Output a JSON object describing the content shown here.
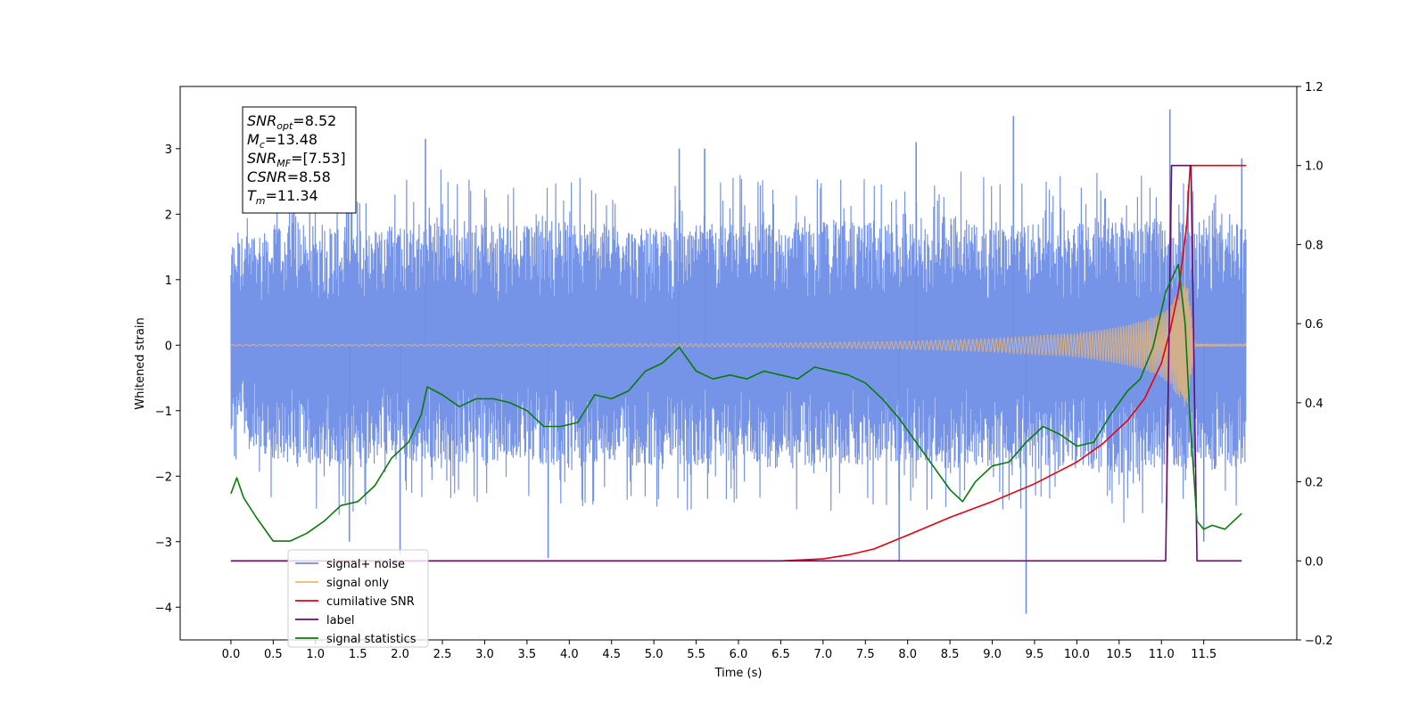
{
  "chart_data": {
    "type": "line",
    "xlabel": "Time (s)",
    "ylabel": "Whitened strain",
    "xlim": [
      -0.6,
      12.6
    ],
    "ylim": [
      -4.5,
      3.95
    ],
    "y2lim": [
      -0.2,
      1.2
    ],
    "x_ticks": [
      0.0,
      0.5,
      1.0,
      1.5,
      2.0,
      2.5,
      3.0,
      3.5,
      4.0,
      4.5,
      5.0,
      5.5,
      6.0,
      6.5,
      7.0,
      7.5,
      8.0,
      8.5,
      9.0,
      9.5,
      10.0,
      10.5,
      11.0,
      11.5
    ],
    "x_tick_labels": [
      "0.0",
      "0.5",
      "1.0",
      "1.5",
      "2.0",
      "2.5",
      "3.0",
      "3.5",
      "4.0",
      "4.5",
      "5.0",
      "5.5",
      "6.0",
      "6.5",
      "7.0",
      "7.5",
      "8.0",
      "8.5",
      "9.0",
      "9.5",
      "10.0",
      "10.5",
      "11.0",
      "11.5"
    ],
    "y_ticks": [
      3,
      2,
      1,
      0,
      -1,
      -2,
      -3,
      -4
    ],
    "y_tick_labels": [
      "3",
      "2",
      "1",
      "0",
      "−1",
      "−2",
      "−3",
      "−4"
    ],
    "y2_ticks": [
      1.2,
      1.0,
      0.8,
      0.6,
      0.4,
      0.2,
      0.0,
      -0.2
    ],
    "y2_tick_labels": [
      "1.2",
      "1.0",
      "0.8",
      "0.6",
      "0.4",
      "0.2",
      "0.0",
      "−0.2"
    ],
    "grid": false,
    "legend_position": "bottom-left",
    "series": [
      {
        "name": "signal+ noise",
        "axis": "left",
        "color": "#6f8ee6",
        "x_range": [
          0.0,
          12.0
        ],
        "envelope_upper": [
          2.0,
          2.3,
          2.4,
          2.2,
          2.3,
          2.5,
          2.3,
          2.4,
          2.4,
          2.3,
          2.2,
          2.3,
          2.4,
          2.3,
          2.4,
          2.4,
          2.3,
          2.5,
          2.4,
          2.3,
          2.4,
          2.5,
          2.4,
          2.4,
          2.3
        ],
        "envelope_lower": [
          -1.6,
          -2.2,
          -2.3,
          -2.4,
          -2.2,
          -2.3,
          -2.3,
          -2.2,
          -2.4,
          -2.3,
          -2.3,
          -2.3,
          -2.2,
          -2.4,
          -2.3,
          -2.3,
          -2.2,
          -2.4,
          -2.3,
          -2.4,
          -2.4,
          -2.5,
          -2.3,
          -2.4,
          -2.3
        ],
        "spikes": [
          [
            1.4,
            -3.0
          ],
          [
            2.0,
            -3.2
          ],
          [
            2.3,
            3.15
          ],
          [
            3.75,
            -3.25
          ],
          [
            5.3,
            3.0
          ],
          [
            5.6,
            3.0
          ],
          [
            7.9,
            -3.3
          ],
          [
            8.1,
            3.1
          ],
          [
            9.25,
            3.5
          ],
          [
            9.4,
            -4.1
          ],
          [
            11.1,
            3.6
          ],
          [
            11.5,
            -3.0
          ],
          [
            11.95,
            2.85
          ]
        ]
      },
      {
        "name": "signal only",
        "axis": "left",
        "color": "#f0b86c",
        "x": [
          0.0,
          1.0,
          2.0,
          3.0,
          4.0,
          5.0,
          6.0,
          6.5,
          7.0,
          7.5,
          8.0,
          8.5,
          9.0,
          9.5,
          10.0,
          10.5,
          10.8,
          11.0,
          11.1,
          11.2,
          11.3,
          11.35,
          11.4,
          12.0
        ],
        "amplitude": [
          0.01,
          0.01,
          0.012,
          0.014,
          0.016,
          0.02,
          0.025,
          0.03,
          0.04,
          0.05,
          0.06,
          0.08,
          0.1,
          0.14,
          0.18,
          0.28,
          0.38,
          0.5,
          0.6,
          0.8,
          1.0,
          0.5,
          0.02,
          0.01
        ]
      },
      {
        "name": "cumilative SNR",
        "axis": "right",
        "color": "#e8000b",
        "x": [
          0.0,
          6.5,
          7.0,
          7.3,
          7.6,
          8.0,
          8.5,
          9.0,
          9.5,
          10.0,
          10.3,
          10.6,
          10.8,
          11.0,
          11.1,
          11.2,
          11.3,
          11.32,
          11.34,
          11.4,
          12.0
        ],
        "values": [
          0.0,
          0.0,
          0.005,
          0.015,
          0.03,
          0.065,
          0.11,
          0.15,
          0.195,
          0.25,
          0.295,
          0.355,
          0.41,
          0.5,
          0.58,
          0.68,
          0.85,
          0.93,
          1.0,
          1.0,
          1.0
        ]
      },
      {
        "name": "label",
        "axis": "right",
        "color": "#6a0a6e",
        "x": [
          0.0,
          11.05,
          11.12,
          11.35,
          11.42,
          11.95
        ],
        "values": [
          0.0,
          0.0,
          1.0,
          1.0,
          0.0,
          0.0
        ]
      },
      {
        "name": "signal statistics",
        "axis": "right",
        "color": "#0a7a0a",
        "x": [
          0.0,
          0.07,
          0.15,
          0.3,
          0.5,
          0.7,
          0.9,
          1.1,
          1.3,
          1.5,
          1.7,
          1.9,
          2.1,
          2.25,
          2.32,
          2.5,
          2.7,
          2.9,
          3.1,
          3.3,
          3.5,
          3.7,
          3.9,
          4.1,
          4.3,
          4.5,
          4.7,
          4.9,
          5.1,
          5.3,
          5.5,
          5.7,
          5.9,
          6.1,
          6.3,
          6.5,
          6.7,
          6.9,
          7.1,
          7.3,
          7.5,
          7.7,
          7.9,
          8.1,
          8.3,
          8.5,
          8.65,
          8.8,
          9.0,
          9.2,
          9.4,
          9.6,
          9.8,
          10.0,
          10.2,
          10.4,
          10.6,
          10.75,
          10.9,
          11.05,
          11.2,
          11.28,
          11.34,
          11.42,
          11.5,
          11.6,
          11.75,
          11.95
        ],
        "values": [
          0.17,
          0.21,
          0.16,
          0.11,
          0.05,
          0.05,
          0.07,
          0.1,
          0.14,
          0.15,
          0.19,
          0.26,
          0.3,
          0.37,
          0.44,
          0.42,
          0.39,
          0.41,
          0.41,
          0.4,
          0.38,
          0.34,
          0.34,
          0.35,
          0.42,
          0.41,
          0.43,
          0.48,
          0.5,
          0.54,
          0.48,
          0.46,
          0.47,
          0.46,
          0.48,
          0.47,
          0.46,
          0.49,
          0.48,
          0.47,
          0.45,
          0.41,
          0.36,
          0.3,
          0.24,
          0.18,
          0.15,
          0.2,
          0.24,
          0.25,
          0.3,
          0.34,
          0.32,
          0.29,
          0.3,
          0.37,
          0.43,
          0.46,
          0.54,
          0.68,
          0.75,
          0.6,
          0.35,
          0.1,
          0.08,
          0.09,
          0.08,
          0.12
        ]
      }
    ],
    "annotation": {
      "lines": [
        {
          "base": "SNR",
          "sub": "opt",
          "rest": "=8.52"
        },
        {
          "base": "M",
          "sub": "c",
          "rest": "=13.48"
        },
        {
          "base": "SNR",
          "sub": "MF",
          "rest": "=[7.53]"
        },
        {
          "base": "CSNR",
          "sub": "",
          "rest": "=8.58"
        },
        {
          "base": "T",
          "sub": "m",
          "rest": "=11.34"
        }
      ]
    }
  }
}
